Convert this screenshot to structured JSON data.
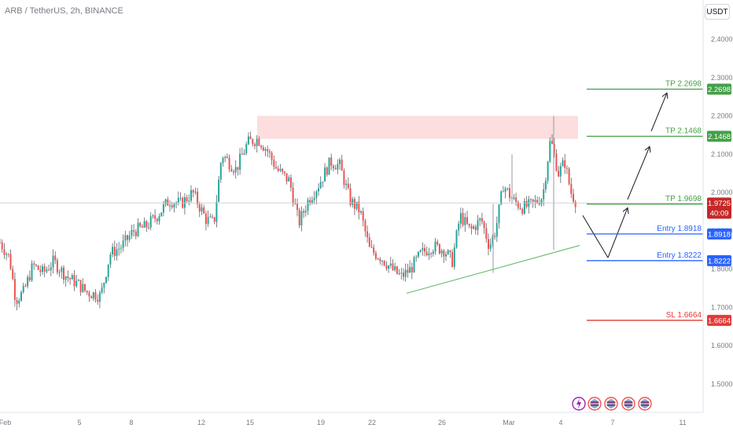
{
  "symbol": "ARB / TetherUS, 2h, BINANCE",
  "currency_button": "USDT",
  "colors": {
    "up": "#26a69a",
    "down": "#ef5350",
    "wick": "#5d606b",
    "green_line": "#43a047",
    "blue_line": "#2962ff",
    "red_line": "#e53935",
    "zone": "#fcdede",
    "current_tag": "#c62828"
  },
  "chart_data": {
    "type": "candlestick",
    "title": "ARB / TetherUS, 2h, BINANCE",
    "ylim": [
      1.45,
      2.45
    ],
    "y_ticks": [
      "1.5000",
      "1.6000",
      "1.7000",
      "1.8000",
      "1.9000",
      "2.0000",
      "2.1000",
      "2.2000",
      "2.3000",
      "2.4000"
    ],
    "x_ticks": [
      {
        "label": "Feb",
        "t": 0.5
      },
      {
        "label": "5",
        "t": 101
      },
      {
        "label": "8",
        "t": 167
      },
      {
        "label": "12",
        "t": 256
      },
      {
        "label": "15",
        "t": 318
      },
      {
        "label": "19",
        "t": 408
      },
      {
        "label": "22",
        "t": 473
      },
      {
        "label": "26",
        "t": 562
      },
      {
        "label": "Mar",
        "t": 647
      },
      {
        "label": "4",
        "t": 713
      },
      {
        "label": "7",
        "t": 779
      },
      {
        "label": "11",
        "t": 868
      }
    ],
    "x_range": [
      0,
      890
    ],
    "price_path": [
      [
        0,
        1.87
      ],
      [
        12,
        1.83
      ],
      [
        20,
        1.72
      ],
      [
        30,
        1.74
      ],
      [
        42,
        1.81
      ],
      [
        55,
        1.79
      ],
      [
        68,
        1.82
      ],
      [
        85,
        1.78
      ],
      [
        100,
        1.76
      ],
      [
        110,
        1.74
      ],
      [
        128,
        1.73
      ],
      [
        140,
        1.84
      ],
      [
        155,
        1.86
      ],
      [
        170,
        1.9
      ],
      [
        185,
        1.91
      ],
      [
        200,
        1.94
      ],
      [
        215,
        1.98
      ],
      [
        230,
        1.97
      ],
      [
        245,
        2.0
      ],
      [
        262,
        1.93
      ],
      [
        272,
        1.92
      ],
      [
        282,
        2.1
      ],
      [
        300,
        2.06
      ],
      [
        315,
        2.13
      ],
      [
        328,
        2.14
      ],
      [
        340,
        2.11
      ],
      [
        352,
        2.06
      ],
      [
        368,
        2.03
      ],
      [
        380,
        1.92
      ],
      [
        392,
        1.98
      ],
      [
        405,
        2.02
      ],
      [
        420,
        2.08
      ],
      [
        432,
        2.07
      ],
      [
        445,
        1.98
      ],
      [
        458,
        1.95
      ],
      [
        470,
        1.85
      ],
      [
        485,
        1.83
      ],
      [
        498,
        1.8
      ],
      [
        510,
        1.78
      ],
      [
        522,
        1.8
      ],
      [
        535,
        1.84
      ],
      [
        550,
        1.86
      ],
      [
        565,
        1.85
      ],
      [
        575,
        1.82
      ],
      [
        585,
        1.94
      ],
      [
        598,
        1.9
      ],
      [
        612,
        1.93
      ],
      [
        622,
        1.86
      ],
      [
        630,
        1.9
      ],
      [
        640,
        2.02
      ],
      [
        652,
        1.98
      ],
      [
        665,
        1.96
      ],
      [
        678,
        1.97
      ],
      [
        690,
        1.99
      ],
      [
        700,
        2.14
      ],
      [
        710,
        2.05
      ],
      [
        718,
        2.08
      ],
      [
        726,
        2.0
      ],
      [
        734,
        1.97
      ]
    ],
    "resistance_zone": {
      "x_start": 327,
      "x_end": 735,
      "y_low": 2.14,
      "y_high": 2.2
    },
    "trendline": {
      "x1": 517,
      "y1": 1.737,
      "x2": 737,
      "y2": 1.862
    },
    "spikes": [
      {
        "x": 627,
        "high": 1.97,
        "low": 1.79
      },
      {
        "x": 651,
        "high": 2.1,
        "low": 1.97
      },
      {
        "x": 704,
        "high": 2.2,
        "low": 1.85
      }
    ],
    "projection_arrows": [
      {
        "x1": 741,
        "y1": 1.94,
        "x2": 773,
        "y2": 1.83
      },
      {
        "x1": 773,
        "y1": 1.83,
        "x2": 798,
        "y2": 1.96
      },
      {
        "x1": 798,
        "y1": 1.982,
        "x2": 826,
        "y2": 2.12
      },
      {
        "x1": 828,
        "y1": 2.16,
        "x2": 848,
        "y2": 2.26
      }
    ],
    "current_price": 1.9725,
    "levels": [
      {
        "name": "TP 2.2698",
        "price": 2.2698,
        "tag": "2.2698",
        "kind": "green"
      },
      {
        "name": "TP 2.1468",
        "price": 2.1468,
        "tag": "2.1468",
        "kind": "green"
      },
      {
        "name": "TP 1.9698",
        "price": 1.9698,
        "tag": "1.9698",
        "kind": "green"
      },
      {
        "name": "Entry 1.8918",
        "price": 1.8918,
        "tag": "1.8918",
        "kind": "blue"
      },
      {
        "name": "Entry 1.8222",
        "price": 1.8222,
        "tag": "1.8222",
        "kind": "blue"
      },
      {
        "name": "SL 1.6664",
        "price": 1.6664,
        "tag": "1.6664",
        "kind": "red"
      }
    ],
    "current_tag": {
      "price": "1.9725",
      "countdown": "40:09"
    }
  }
}
